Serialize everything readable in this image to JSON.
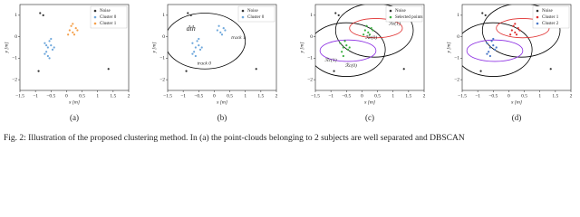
{
  "chart_data": [
    {
      "type": "scatter",
      "label": "(a)",
      "xlabel": "x [m]",
      "ylabel": "y [m]",
      "xlim": [
        -1.5,
        2
      ],
      "xticks": [
        {
          "value": -1.5,
          "label": "−1.5"
        },
        {
          "value": -1,
          "label": "−1"
        },
        {
          "value": -0.5,
          "label": "−0.5"
        },
        0,
        0.5,
        1,
        1.5,
        2
      ],
      "ylim": [
        -2.5,
        1.5
      ],
      "yticks": [
        {
          "value": -2,
          "label": "−2"
        },
        {
          "value": -1,
          "label": "−1"
        },
        0,
        1
      ],
      "legend": "upper right",
      "series": [
        {
          "name": "Noise",
          "color": "#333333",
          "x": [
            -0.85,
            -0.75,
            1.35,
            -0.9
          ],
          "y": [
            1.1,
            1.0,
            -1.5,
            -1.6
          ]
        },
        {
          "name": "Cluster 0",
          "color": "#6fa8dc",
          "x": [
            -0.7,
            -0.6,
            -0.5,
            -0.65,
            -0.55,
            -0.45,
            -0.6,
            -0.7,
            -0.5,
            -0.4,
            -0.55,
            -0.65
          ],
          "y": [
            -0.3,
            -0.5,
            -0.4,
            -0.7,
            -0.2,
            -0.6,
            -0.9,
            -0.8,
            -0.1,
            -0.5,
            -1.0,
            -0.4
          ]
        },
        {
          "name": "Cluster 1",
          "color": "#f5a04a",
          "x": [
            0.1,
            0.2,
            0.3,
            0.25,
            0.15,
            0.35,
            0.05,
            0.2
          ],
          "y": [
            0.3,
            0.2,
            0.4,
            0.1,
            0.5,
            0.3,
            0.1,
            0.6
          ]
        }
      ],
      "regions": [],
      "annotations": []
    },
    {
      "type": "scatter",
      "label": "(b)",
      "xlabel": "x [m]",
      "ylabel": "y [m]",
      "xlim": [
        -1.5,
        2
      ],
      "xticks": [
        {
          "value": -1.5,
          "label": "−1.5"
        },
        {
          "value": -1,
          "label": "−1"
        },
        {
          "value": -0.5,
          "label": "−0.5"
        },
        0,
        0.5,
        1,
        1.5,
        2
      ],
      "ylim": [
        -2.5,
        1.5
      ],
      "yticks": [
        {
          "value": -2,
          "label": "−2"
        },
        {
          "value": -1,
          "label": "−1"
        },
        0,
        1
      ],
      "legend": "upper right",
      "series": [
        {
          "name": "Noise",
          "color": "#333333",
          "x": [
            -0.85,
            -0.75,
            1.35,
            -0.9
          ],
          "y": [
            1.1,
            1.0,
            -1.5,
            -1.6
          ]
        },
        {
          "name": "Cluster 0",
          "color": "#6fa8dc",
          "x": [
            -0.7,
            -0.6,
            -0.5,
            -0.65,
            -0.55,
            -0.45,
            -0.6,
            -0.7,
            -0.5,
            -0.4,
            0.1,
            0.2,
            0.3,
            0.25,
            0.15,
            0.35
          ],
          "y": [
            -0.3,
            -0.5,
            -0.4,
            -0.7,
            -0.2,
            -0.6,
            -0.9,
            -0.8,
            -0.1,
            -0.5,
            0.3,
            0.2,
            0.4,
            0.1,
            0.5,
            0.3
          ]
        }
      ],
      "regions": [
        {
          "color": "#000000",
          "cx": -0.3,
          "cy": -0.2,
          "rx": 1.3,
          "ry": 1.3
        }
      ],
      "annotations": [
        "dth",
        "track 1",
        "track 0"
      ]
    },
    {
      "type": "scatter",
      "label": "(c)",
      "xlabel": "x [m]",
      "ylabel": "y [m]",
      "xlim": [
        -1.5,
        2
      ],
      "xticks": [
        {
          "value": -1.5,
          "label": "−1.5"
        },
        {
          "value": -1,
          "label": "−1"
        },
        {
          "value": -0.5,
          "label": "−0.5"
        },
        0,
        0.5,
        1,
        1.5,
        2
      ],
      "ylim": [
        -2.5,
        1.5
      ],
      "yticks": [
        {
          "value": -2,
          "label": "−2"
        },
        {
          "value": -1,
          "label": "−1"
        },
        0,
        1
      ],
      "legend": "upper right",
      "series": [
        {
          "name": "Noise",
          "color": "#333333",
          "x": [
            -0.85,
            -0.75,
            1.35,
            -0.9
          ],
          "y": [
            1.1,
            1.0,
            -1.5,
            -1.6
          ]
        },
        {
          "name": "Selected points",
          "color": "#3cb043",
          "x": [
            -0.7,
            -0.6,
            -0.5,
            -0.65,
            -0.55,
            -0.45,
            -0.6,
            -0.4,
            0.1,
            0.2,
            0.3,
            0.25,
            0.15,
            0.35,
            0.05
          ],
          "y": [
            -0.3,
            -0.5,
            -0.4,
            -0.7,
            -0.2,
            -0.6,
            -0.9,
            -0.5,
            0.3,
            0.2,
            0.4,
            0.1,
            0.5,
            0.3,
            0.1
          ]
        }
      ],
      "regions": [
        {
          "color": "#000000",
          "cx": 0.4,
          "cy": 0.3,
          "rx": 1.25,
          "ry": 1.25
        },
        {
          "color": "#000000",
          "cx": -0.5,
          "cy": -0.6,
          "rx": 1.25,
          "ry": 1.25
        },
        {
          "color": "#e03030",
          "cx": 0.45,
          "cy": 0.4,
          "rx": 0.85,
          "ry": 0.45
        },
        {
          "color": "#8a2be2",
          "cx": -0.45,
          "cy": -0.65,
          "rx": 0.9,
          "ry": 0.5
        }
      ],
      "annotations": [
        "ℛe(1)",
        "ℛe(0)",
        "ℛc(0)",
        "ℛc(1)"
      ]
    },
    {
      "type": "scatter",
      "label": "(d)",
      "xlabel": "x [m]",
      "ylabel": "y [m]",
      "xlim": [
        -1.5,
        2
      ],
      "xticks": [
        {
          "value": -1.5,
          "label": "−1.5"
        },
        {
          "value": -1,
          "label": "−1"
        },
        {
          "value": -0.5,
          "label": "−0.5"
        },
        0,
        0.5,
        1,
        1.5,
        2
      ],
      "ylim": [
        -2.5,
        1.5
      ],
      "yticks": [
        {
          "value": -2,
          "label": "−2"
        },
        {
          "value": -1,
          "label": "−1"
        },
        0,
        1
      ],
      "legend": "upper right",
      "series": [
        {
          "name": "Noise",
          "color": "#333333",
          "x": [
            -0.85,
            -0.75,
            1.35,
            -0.9
          ],
          "y": [
            1.1,
            1.0,
            -1.5,
            -1.6
          ]
        },
        {
          "name": "Cluster 1",
          "color": "#e03030",
          "x": [
            0.1,
            0.2,
            0.3,
            0.25,
            0.15,
            0.35,
            0.05,
            0.2
          ],
          "y": [
            0.3,
            0.2,
            0.4,
            0.1,
            0.5,
            0.3,
            0.1,
            0.6
          ]
        },
        {
          "name": "Cluster 2",
          "color": "#4a78c8",
          "x": [
            -0.7,
            -0.6,
            -0.5,
            -0.65,
            -0.55,
            -0.45,
            -0.6,
            -0.7,
            -0.5,
            -0.4
          ],
          "y": [
            -0.3,
            -0.5,
            -0.4,
            -0.7,
            -0.2,
            -0.6,
            -0.9,
            -0.8,
            -0.1,
            -0.5
          ]
        }
      ],
      "regions": [
        {
          "color": "#000000",
          "cx": 0.4,
          "cy": 0.3,
          "rx": 1.25,
          "ry": 1.25
        },
        {
          "color": "#000000",
          "cx": -0.5,
          "cy": -0.6,
          "rx": 1.25,
          "ry": 1.25
        },
        {
          "color": "#e03030",
          "cx": 0.45,
          "cy": 0.4,
          "rx": 0.85,
          "ry": 0.45
        },
        {
          "color": "#8a2be2",
          "cx": -0.45,
          "cy": -0.65,
          "rx": 0.9,
          "ry": 0.5
        }
      ],
      "annotations": []
    }
  ],
  "caption": "Fig. 2: Illustration of the proposed clustering method. In (a) the point-clouds belonging to 2 subjects are well separated and DBSCAN"
}
